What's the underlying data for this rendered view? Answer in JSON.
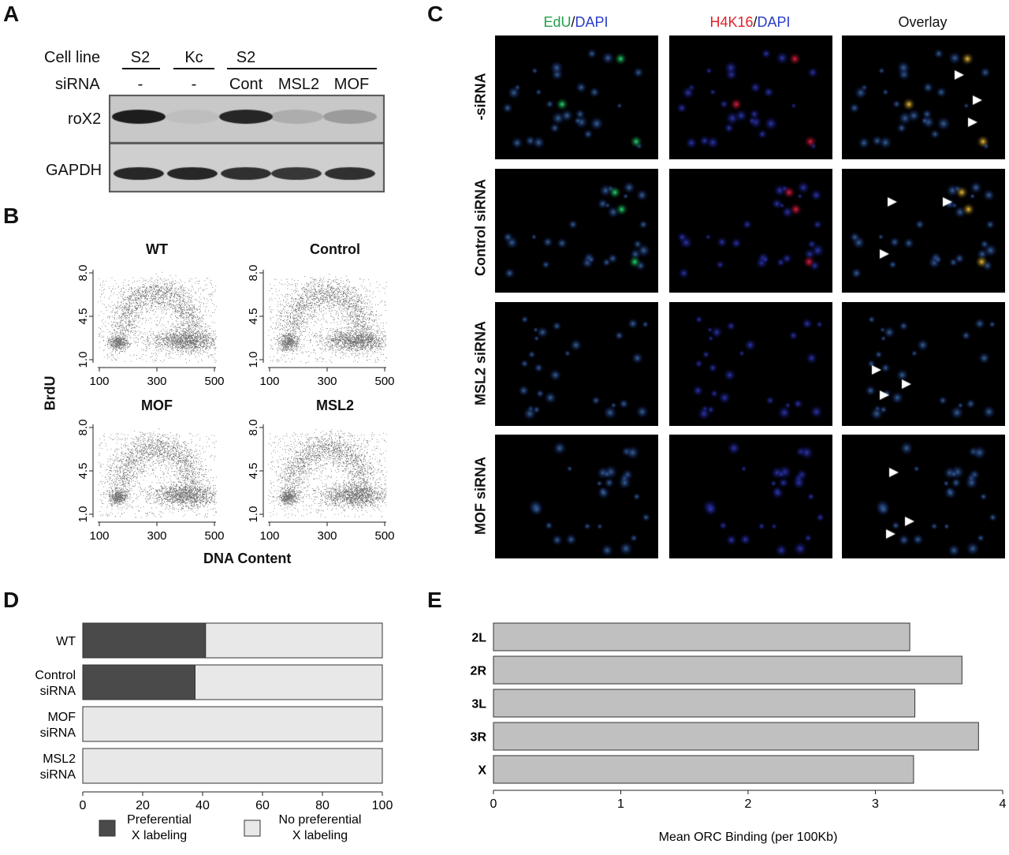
{
  "panels": {
    "A": "A",
    "B": "B",
    "C": "C",
    "D": "D",
    "E": "E"
  },
  "panel_a": {
    "row_labels": {
      "cell_line": "Cell line",
      "sirna": "siRNA",
      "rox2": "roX2",
      "gapdh": "GAPDH"
    },
    "lanes": [
      {
        "cell_line": "S2",
        "sirna": "-",
        "rox2": 0.95,
        "gapdh": 1.0
      },
      {
        "cell_line": "Kc",
        "sirna": "-",
        "rox2": 0.05,
        "gapdh": 1.0
      },
      {
        "cell_line": "S2",
        "sirna": "Cont",
        "rox2": 0.9,
        "gapdh": 0.95
      },
      {
        "cell_line": "",
        "sirna": "MSL2",
        "rox2": 0.15,
        "gapdh": 0.9
      },
      {
        "cell_line": "",
        "sirna": "MOF",
        "rox2": 0.25,
        "gapdh": 0.95
      }
    ]
  },
  "panel_b": {
    "y_label": "BrdU",
    "x_label": "DNA Content",
    "x_ticks": [
      "100",
      "300",
      "500"
    ],
    "y_ticks": [
      "1.0",
      "4.5",
      "8.0"
    ],
    "plots": [
      {
        "title": "WT"
      },
      {
        "title": "Control"
      },
      {
        "title": "MOF"
      },
      {
        "title": "MSL2"
      }
    ]
  },
  "panel_c": {
    "col_headers": [
      {
        "parts": [
          {
            "t": "EdU",
            "c": "#1fa04a"
          },
          {
            "t": "/",
            "c": "#111111"
          },
          {
            "t": "DAPI",
            "c": "#2a3cc8"
          }
        ]
      },
      {
        "parts": [
          {
            "t": "H4K16",
            "c": "#e0202a"
          },
          {
            "t": "/",
            "c": "#111111"
          },
          {
            "t": "DAPI",
            "c": "#2a3cc8"
          }
        ]
      },
      {
        "parts": [
          {
            "t": "Overlay",
            "c": "#111111"
          }
        ]
      }
    ],
    "row_labels": [
      "-siRNA",
      "Control siRNA",
      "MSL2 siRNA",
      "MOF siRNA"
    ]
  },
  "chart_data": [
    {
      "type": "bar",
      "orientation": "horizontal",
      "stacked": true,
      "categories": [
        "WT",
        "Control siRNA",
        "MOF siRNA",
        "MSL2 siRNA"
      ],
      "category_lines": [
        [
          "WT"
        ],
        [
          "Control",
          "siRNA"
        ],
        [
          "MOF",
          "siRNA"
        ],
        [
          "MSL2",
          "siRNA"
        ]
      ],
      "series": [
        {
          "name": "Preferential X labeling",
          "name_lines": [
            "Preferential",
            "X labeling"
          ],
          "values": [
            41,
            37.5,
            0,
            0
          ],
          "color": "#4a4a4a"
        },
        {
          "name": "No preferential X labeling",
          "name_lines": [
            "No preferential",
            "X  labeling"
          ],
          "values": [
            59,
            62.5,
            100,
            100
          ],
          "color": "#e8e8e8"
        }
      ],
      "xlim": [
        0,
        100
      ],
      "x_ticks": [
        "0",
        "20",
        "40",
        "60",
        "80",
        "100"
      ],
      "legend_position": "bottom"
    },
    {
      "type": "bar",
      "orientation": "horizontal",
      "categories": [
        "2L",
        "2R",
        "3L",
        "3R",
        "X"
      ],
      "values": [
        3.27,
        3.68,
        3.31,
        3.81,
        3.3
      ],
      "xlabel": "Mean ORC Binding (per 100Kb)",
      "xlim": [
        0,
        4
      ],
      "x_ticks": [
        "0",
        "1",
        "2",
        "3",
        "4"
      ],
      "bar_color": "#c0c0c0"
    }
  ]
}
